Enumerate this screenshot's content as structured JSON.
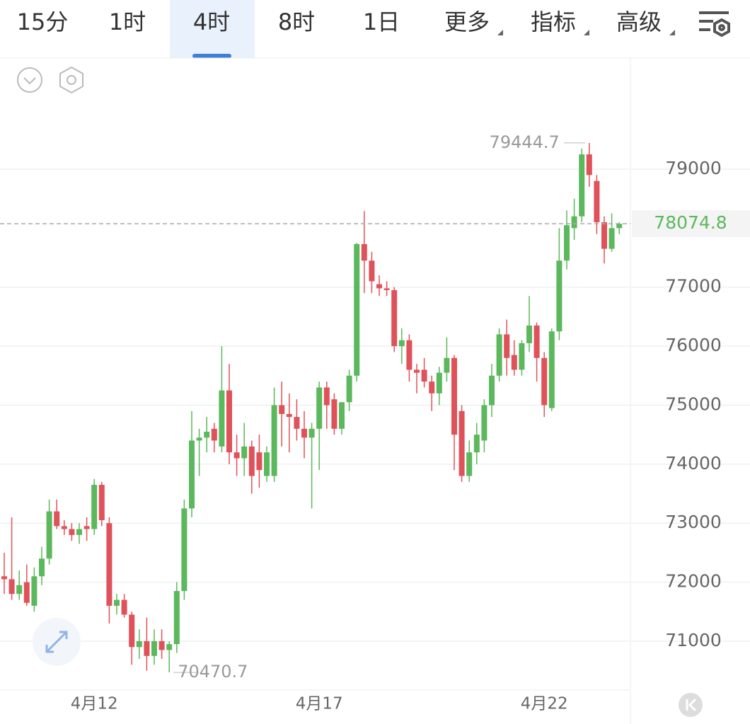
{
  "tabs": [
    "15分",
    "1时",
    "4时",
    "8时",
    "1日",
    "更多",
    "指标",
    "高级"
  ],
  "chart_data": {
    "type": "candlestick",
    "categories": [
      null,
      null,
      null,
      null,
      null,
      null,
      null,
      null,
      null,
      null,
      null,
      null,
      "4月12",
      null,
      null,
      null,
      null,
      null,
      null,
      null,
      null,
      null,
      null,
      null,
      null,
      null,
      null,
      null,
      null,
      null,
      null,
      null,
      null,
      null,
      null,
      null,
      null,
      null,
      null,
      null,
      null,
      null,
      "4月17",
      null,
      null,
      null,
      null,
      null,
      null,
      null,
      null,
      null,
      null,
      null,
      null,
      null,
      null,
      null,
      null,
      null,
      null,
      null,
      null,
      null,
      null,
      null,
      null,
      null,
      null,
      null,
      null,
      null,
      "4月22",
      null,
      null,
      null,
      null,
      null,
      null,
      null,
      null,
      null,
      null
    ],
    "open": [
      72100,
      72050,
      71800,
      72000,
      71600,
      72100,
      72400,
      73200,
      72950,
      72900,
      72800,
      72950,
      72900,
      73650,
      73000,
      71600,
      71700,
      71450,
      70900,
      71000,
      70750,
      71000,
      70850,
      70950,
      71850,
      73250,
      74400,
      74450,
      74600,
      74300,
      75250,
      74200,
      74100,
      74300,
      74200,
      73800,
      73800,
      75000,
      74850,
      74800,
      74600,
      74450,
      74600,
      75300,
      75100,
      74600,
      75050,
      75500,
      77730,
      77450,
      77050,
      76980,
      76950,
      76000,
      76100,
      75600,
      75600,
      75400,
      75200,
      75550,
      75800,
      74900,
      73800,
      74200,
      74400,
      75000,
      75500,
      76200,
      75850,
      75600,
      76050,
      76350,
      75800,
      74950,
      76250,
      77450,
      78000,
      78200,
      79250,
      78800,
      78100,
      77650,
      78000
    ],
    "high": [
      72500,
      73100,
      72200,
      72300,
      72250,
      72600,
      73400,
      73400,
      73050,
      73000,
      73000,
      73100,
      73750,
      73700,
      73100,
      71800,
      71800,
      71500,
      71200,
      71400,
      71200,
      71200,
      71000,
      72000,
      73400,
      74900,
      74600,
      74800,
      74700,
      76000,
      75700,
      74500,
      74700,
      74400,
      74500,
      74300,
      75300,
      75400,
      75200,
      75100,
      74900,
      74700,
      75400,
      75400,
      75200,
      75050,
      75600,
      77750,
      78290,
      77600,
      77200,
      77100,
      77000,
      76300,
      76200,
      75700,
      75800,
      75500,
      75650,
      76150,
      75850,
      75000,
      74400,
      74700,
      75100,
      75700,
      76300,
      76450,
      76100,
      76100,
      76850,
      76400,
      75900,
      76300,
      78000,
      78300,
      78500,
      79350,
      79444.7,
      78900,
      78200,
      78250,
      78100
    ],
    "low": [
      71800,
      71700,
      71700,
      71600,
      71500,
      71950,
      72300,
      72900,
      72800,
      72700,
      72650,
      72700,
      72800,
      72950,
      71300,
      71450,
      71400,
      70600,
      70700,
      70500,
      70600,
      70700,
      70470.7,
      70800,
      71700,
      73100,
      73800,
      74200,
      74200,
      74200,
      74000,
      73800,
      73800,
      73500,
      73600,
      73700,
      73700,
      74300,
      74200,
      74400,
      74100,
      73250,
      73900,
      74600,
      74500,
      74500,
      74900,
      75400,
      76900,
      76900,
      76850,
      76850,
      75900,
      75700,
      75400,
      75200,
      75300,
      74900,
      75000,
      75400,
      73900,
      73700,
      73700,
      74000,
      74200,
      74800,
      75400,
      75500,
      75500,
      75500,
      75900,
      75400,
      74800,
      74900,
      76100,
      77300,
      77800,
      78100,
      78700,
      77900,
      77400,
      77600,
      77900
    ],
    "close": [
      72050,
      71800,
      71950,
      71650,
      72100,
      72400,
      73200,
      72950,
      72900,
      72800,
      72900,
      72900,
      73650,
      73050,
      71600,
      71700,
      71450,
      70900,
      71000,
      70750,
      71000,
      70850,
      70950,
      71850,
      73250,
      74400,
      74450,
      74550,
      74400,
      75250,
      74200,
      74100,
      74300,
      73800,
      73900,
      74200,
      75000,
      74850,
      74800,
      74600,
      74450,
      74600,
      75300,
      75000,
      74600,
      75050,
      75500,
      77730,
      77450,
      77100,
      76980,
      76950,
      76000,
      76100,
      75600,
      75550,
      75400,
      75200,
      75550,
      75800,
      74500,
      73800,
      74200,
      74500,
      75000,
      75500,
      76200,
      75800,
      75600,
      76050,
      76350,
      75800,
      75000,
      76250,
      77450,
      78050,
      78200,
      79250,
      78900,
      78100,
      77650,
      78000,
      78074.8
    ],
    "up_color": "#5cb85c",
    "down_color": "#e0525a",
    "ylim": [
      70172,
      80883
    ],
    "yticks": [
      71000,
      72000,
      73000,
      74000,
      75000,
      76000,
      77000,
      79000
    ],
    "grid": true
  }
}
